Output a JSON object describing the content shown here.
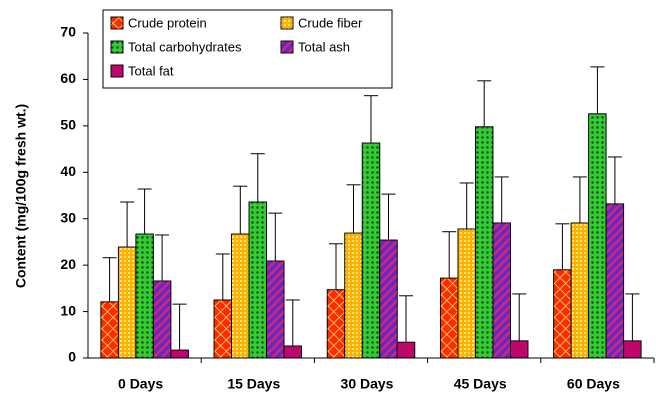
{
  "chart_data": {
    "type": "bar",
    "ylabel": "Content (mg/100g fresh wt.)",
    "categories": [
      "0 Days",
      "15 Days",
      "30 Days",
      "45 Days",
      "60 Days"
    ],
    "series": [
      {
        "name": "Crude protein",
        "color": "#ff2a00",
        "values": [
          12.1,
          12.5,
          14.7,
          17.2,
          19.0
        ],
        "errors": [
          9.5,
          9.9,
          9.9,
          10.0,
          9.9
        ]
      },
      {
        "name": "Crude fiber",
        "color": "#ffb000",
        "values": [
          23.9,
          26.7,
          26.9,
          27.8,
          29.1
        ],
        "errors": [
          9.7,
          10.3,
          10.4,
          9.9,
          9.9
        ]
      },
      {
        "name": "Total carbohydrates",
        "color": "#33cc33",
        "values": [
          26.7,
          33.6,
          46.3,
          49.8,
          52.6
        ],
        "errors": [
          9.7,
          10.4,
          10.2,
          9.9,
          10.1
        ]
      },
      {
        "name": "Total ash",
        "color": "#5a2ccc",
        "values": [
          16.6,
          20.9,
          25.4,
          29.1,
          33.2
        ],
        "errors": [
          9.9,
          10.3,
          9.9,
          9.9,
          10.1
        ]
      },
      {
        "name": "Total fat",
        "color": "#cc0066",
        "values": [
          1.7,
          2.6,
          3.4,
          3.7,
          3.7
        ],
        "errors": [
          9.9,
          9.9,
          10.0,
          10.1,
          10.1
        ]
      }
    ],
    "ylim": [
      0,
      70
    ],
    "yticks": [
      0,
      10,
      20,
      30,
      40,
      50,
      60,
      70
    ],
    "legend": "top-left",
    "grid": false
  }
}
